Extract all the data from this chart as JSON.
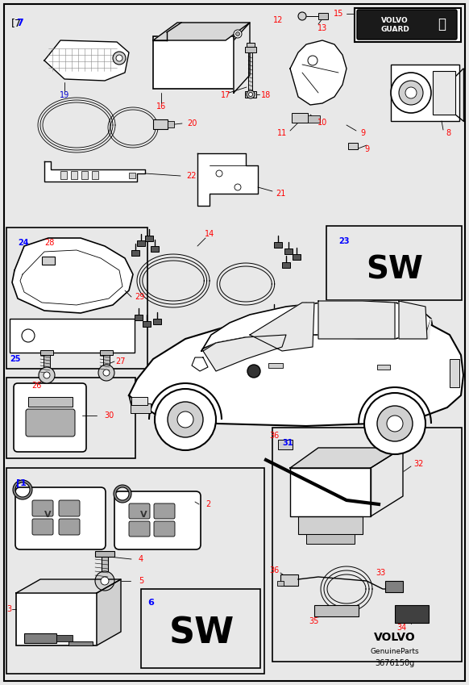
{
  "fig_width": 5.82,
  "fig_height": 8.49,
  "dpi": 100,
  "bg_color": "#e8e8e8",
  "line_color": "#000000",
  "blue_nums": [
    "1",
    "6",
    "7",
    "19",
    "22",
    "24",
    "25",
    "31"
  ],
  "red_nums": [
    "2",
    "3",
    "4",
    "5",
    "8",
    "9",
    "10",
    "11",
    "12",
    "13",
    "14",
    "15",
    "16",
    "17",
    "18",
    "20",
    "21",
    "23",
    "26",
    "27",
    "28",
    "29",
    "30",
    "32",
    "33",
    "34",
    "35",
    "36"
  ],
  "volvo_text": "VOLVO",
  "genuine_text": "GenuineParts",
  "part_num_text": "3676150g",
  "sw_text": "SW"
}
